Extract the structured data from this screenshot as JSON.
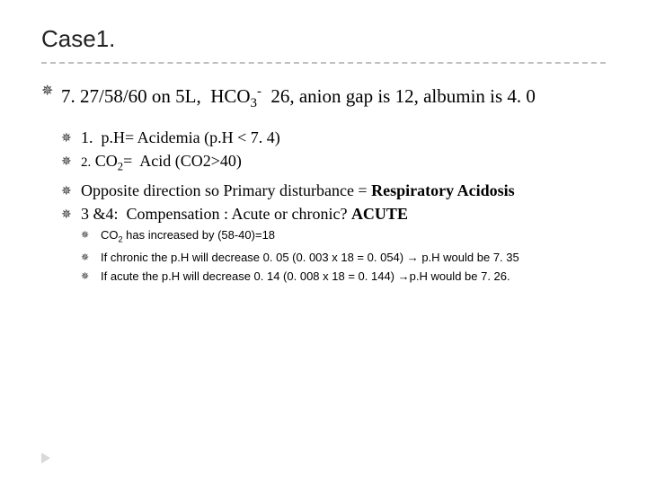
{
  "title": "Case1.",
  "main": {
    "text_html": "7. 27/58/60 on 5L,&nbsp;&nbsp;HCO<sub>3</sub><sup>-</sup>&nbsp;&nbsp;26, anion gap is 12, albumin is 4. 0"
  },
  "points": [
    {
      "html": "1.&nbsp; p.H= Acidemia (p.H &lt; 7. 4)"
    },
    {
      "html": "<span class='small'>2.</span>&nbsp;CO<sub>2</sub>=&nbsp; Acid (CO2&gt;40)"
    },
    {
      "html": "Opposite direction so Primary disturbance = <b>Respiratory Acidosis</b>"
    },
    {
      "html": "3 &amp;4:&nbsp; Compensation : Acute or chronic? <b>ACUTE</b>"
    }
  ],
  "subpoints": [
    {
      "html": "CO<sub>2</sub> has increased by (58-40)=18"
    },
    {
      "html": "If chronic the p.H will decrease 0. 05 (0. 003 x 18 = 0. 054) &rarr; p.H would be 7. 35"
    },
    {
      "html": "If acute the p.H will decrease 0. 14 (0. 008 x 18 = 0. 144) &rarr;p.H would be 7. 26."
    }
  ],
  "bullet_glyph": "✵"
}
